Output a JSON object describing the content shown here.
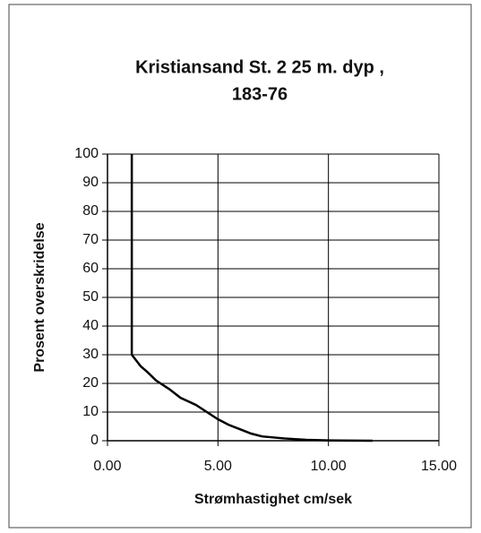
{
  "chart_data": {
    "type": "line",
    "title": [
      "Kristiansand  St. 2  25 m. dyp ,",
      "183-76"
    ],
    "x_label": "Strømhastighet cm/sek",
    "y_label": "Prosent overskridelse",
    "x": [
      1.1,
      1.1,
      1.3,
      1.5,
      1.8,
      2.2,
      2.8,
      3.3,
      4.0,
      4.5,
      5.0,
      5.5,
      6.0,
      6.5,
      7.0,
      8.0,
      9.0,
      10.0,
      12.0
    ],
    "series": [
      {
        "color": "#000000",
        "values": [
          100,
          30,
          28,
          26,
          24,
          21,
          18,
          15,
          12.5,
          10,
          7.5,
          5.5,
          4,
          2.5,
          1.5,
          0.8,
          0.3,
          0.1,
          0
        ]
      }
    ],
    "xlim": [
      0,
      15
    ],
    "xticks": [
      {
        "value": 0,
        "label": "0.00"
      },
      {
        "value": 5,
        "label": "5.00"
      },
      {
        "value": 10,
        "label": "10.00"
      },
      {
        "value": 15,
        "label": "15.00"
      }
    ],
    "ylim": [
      0,
      100
    ],
    "yticks": [
      0,
      10,
      20,
      30,
      40,
      50,
      60,
      70,
      80,
      90,
      100
    ],
    "grid": true
  }
}
